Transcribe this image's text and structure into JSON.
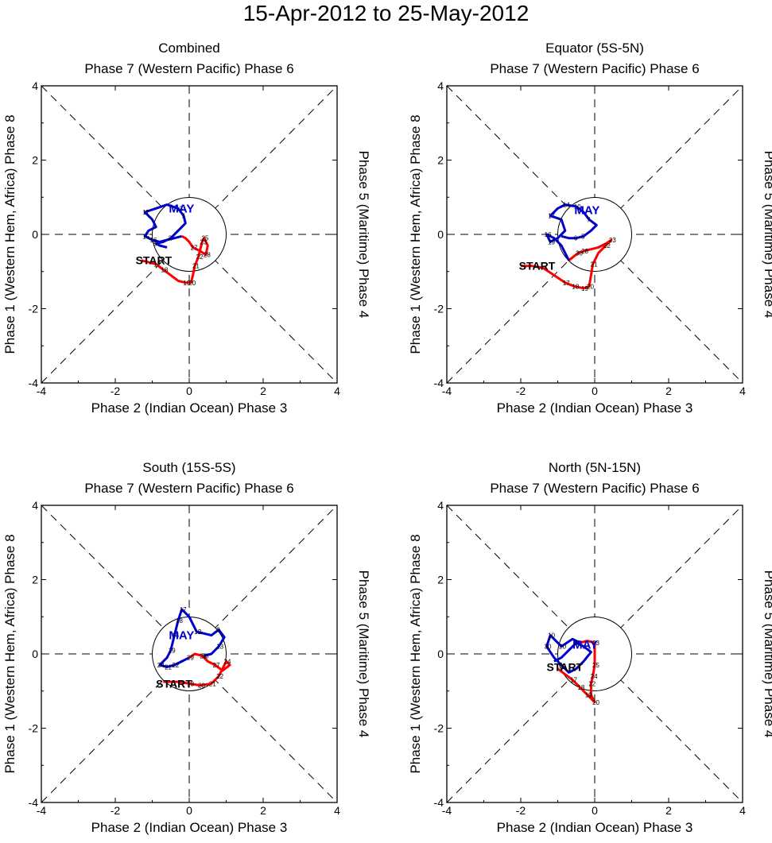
{
  "figure_title": "15-Apr-2012 to 25-May-2012",
  "colors": {
    "april": "#ff0000",
    "may": "#0000cc",
    "axes": "#000000"
  },
  "chart_data": [
    {
      "type": "line",
      "title": "Combined",
      "top_label": "Phase 7 (Western Pacific) Phase 6",
      "bottom_label": "Phase 2 (Indian Ocean) Phase 3",
      "left_label": "Phase 1 (Western Hem, Africa) Phase 8",
      "right_label": "Phase 5 (Maritime) Phase 4",
      "xlim": [
        -4,
        4
      ],
      "ylim": [
        -4,
        4
      ],
      "ticks": [
        -4,
        -2,
        0,
        2,
        4
      ],
      "start_label": "START",
      "month_label": "MAY",
      "series": [
        {
          "name": "April",
          "color": "#ff0000",
          "points": [
            [
              -1.3,
              -0.7
            ],
            [
              -1.1,
              -0.75
            ],
            [
              -0.9,
              -0.8
            ],
            [
              -0.7,
              -0.95
            ],
            [
              -0.5,
              -1.1
            ],
            [
              -0.3,
              -1.25
            ],
            [
              -0.1,
              -1.3
            ],
            [
              0.05,
              -1.3
            ],
            [
              0.1,
              -1.1
            ],
            [
              0.15,
              -0.85
            ],
            [
              0.25,
              -0.6
            ],
            [
              0.3,
              -0.4
            ],
            [
              0.35,
              -0.2
            ],
            [
              0.4,
              -0.1
            ],
            [
              0.5,
              -0.3
            ],
            [
              0.45,
              -0.55
            ],
            [
              0.3,
              -0.45
            ],
            [
              0.1,
              -0.35
            ],
            [
              0.0,
              -0.2
            ],
            [
              -0.1,
              -0.1
            ],
            [
              -0.2,
              -0.05
            ]
          ],
          "day_labels": [
            {
              "i": 2,
              "t": "17"
            },
            {
              "i": 3,
              "t": "18"
            },
            {
              "i": 6,
              "t": "19"
            },
            {
              "i": 7,
              "t": "20"
            },
            {
              "i": 9,
              "t": "21"
            },
            {
              "i": 10,
              "t": "22"
            },
            {
              "i": 12,
              "t": "23"
            },
            {
              "i": 13,
              "t": "25"
            },
            {
              "i": 15,
              "t": "28"
            },
            {
              "i": 17,
              "t": "27"
            }
          ]
        },
        {
          "name": "May",
          "color": "#0000cc",
          "points": [
            [
              -0.2,
              -0.05
            ],
            [
              -0.4,
              -0.1
            ],
            [
              -0.6,
              -0.15
            ],
            [
              -0.8,
              -0.2
            ],
            [
              -1.0,
              -0.15
            ],
            [
              -1.2,
              -0.05
            ],
            [
              -1.1,
              0.1
            ],
            [
              -0.9,
              0.2
            ],
            [
              -1.0,
              0.4
            ],
            [
              -1.2,
              0.6
            ],
            [
              -0.9,
              0.7
            ],
            [
              -0.6,
              0.8
            ],
            [
              -0.3,
              0.7
            ],
            [
              -0.15,
              0.5
            ],
            [
              -0.1,
              0.3
            ],
            [
              -0.3,
              0.1
            ],
            [
              -0.5,
              -0.1
            ],
            [
              -0.7,
              -0.2
            ],
            [
              -0.9,
              -0.25
            ],
            [
              -0.8,
              -0.3
            ],
            [
              -0.6,
              -0.35
            ]
          ],
          "day_labels": [
            {
              "i": 4,
              "t": "16"
            },
            {
              "i": 5,
              "t": "15"
            },
            {
              "i": 9,
              "t": "17"
            },
            {
              "i": 12,
              "t": "13"
            },
            {
              "i": 13,
              "t": "7"
            },
            {
              "i": 16,
              "t": "2"
            },
            {
              "i": 18,
              "t": "5"
            }
          ]
        }
      ],
      "start_xy": [
        -1.45,
        -0.7
      ],
      "month_xy": [
        -0.55,
        0.7
      ]
    },
    {
      "type": "line",
      "title": "Equator (5S-5N)",
      "top_label": "Phase 7 (Western Pacific) Phase 6",
      "bottom_label": "Phase 2 (Indian Ocean) Phase 3",
      "left_label": "Phase 1 (Western Hem, Africa) Phase 8",
      "right_label": "Phase 5 (Maritime) Phase 4",
      "xlim": [
        -4,
        4
      ],
      "ylim": [
        -4,
        4
      ],
      "ticks": [
        -4,
        -2,
        0,
        2,
        4
      ],
      "start_label": "START",
      "month_label": "MAY",
      "series": [
        {
          "name": "April",
          "color": "#ff0000",
          "points": [
            [
              -2.0,
              -0.85
            ],
            [
              -1.7,
              -0.85
            ],
            [
              -1.4,
              -0.9
            ],
            [
              -1.1,
              -1.1
            ],
            [
              -0.8,
              -1.3
            ],
            [
              -0.55,
              -1.4
            ],
            [
              -0.3,
              -1.45
            ],
            [
              -0.15,
              -1.4
            ],
            [
              -0.1,
              -1.1
            ],
            [
              -0.05,
              -0.8
            ],
            [
              0.1,
              -0.5
            ],
            [
              0.3,
              -0.3
            ],
            [
              0.45,
              -0.15
            ],
            [
              0.3,
              -0.25
            ],
            [
              0.1,
              -0.35
            ],
            [
              -0.1,
              -0.4
            ],
            [
              -0.3,
              -0.45
            ],
            [
              -0.45,
              -0.5
            ],
            [
              -0.7,
              -0.7
            ]
          ],
          "day_labels": [
            {
              "i": 4,
              "t": "17"
            },
            {
              "i": 5,
              "t": "18"
            },
            {
              "i": 6,
              "t": "19"
            },
            {
              "i": 7,
              "t": "20"
            },
            {
              "i": 9,
              "t": "21"
            },
            {
              "i": 11,
              "t": "22"
            },
            {
              "i": 12,
              "t": "23"
            },
            {
              "i": 16,
              "t": "28"
            },
            {
              "i": 17,
              "t": "30"
            }
          ]
        },
        {
          "name": "May",
          "color": "#0000cc",
          "points": [
            [
              -0.7,
              -0.7
            ],
            [
              -0.9,
              -0.3
            ],
            [
              -1.1,
              -0.1
            ],
            [
              -1.3,
              0.0
            ],
            [
              -1.2,
              -0.2
            ],
            [
              -1.0,
              -0.1
            ],
            [
              -0.8,
              0.1
            ],
            [
              -0.9,
              0.4
            ],
            [
              -1.2,
              0.5
            ],
            [
              -1.0,
              0.7
            ],
            [
              -0.8,
              0.8
            ],
            [
              -0.5,
              0.75
            ],
            [
              -0.3,
              0.6
            ],
            [
              -0.15,
              0.4
            ],
            [
              0.05,
              0.25
            ],
            [
              -0.1,
              0.1
            ],
            [
              -0.3,
              -0.05
            ],
            [
              -0.5,
              -0.1
            ],
            [
              -0.7,
              -0.1
            ],
            [
              -0.9,
              -0.05
            ]
          ],
          "day_labels": [
            {
              "i": 3,
              "t": "16"
            },
            {
              "i": 4,
              "t": "19"
            },
            {
              "i": 8,
              "t": "17"
            },
            {
              "i": 10,
              "t": "14"
            },
            {
              "i": 11,
              "t": "10"
            },
            {
              "i": 13,
              "t": "7"
            },
            {
              "i": 16,
              "t": "5"
            },
            {
              "i": 17,
              "t": "6"
            }
          ]
        }
      ],
      "start_xy": [
        -2.05,
        -0.85
      ],
      "month_xy": [
        -0.55,
        0.65
      ]
    },
    {
      "type": "line",
      "title": "South (15S-5S)",
      "top_label": "Phase 7 (Western Pacific) Phase 6",
      "bottom_label": "Phase 2 (Indian Ocean) Phase 3",
      "left_label": "Phase 1 (Western Hem, Africa) Phase 8",
      "right_label": "Phase 5 (Maritime) Phase 4",
      "xlim": [
        -4,
        4
      ],
      "ylim": [
        -4,
        4
      ],
      "ticks": [
        -4,
        -2,
        0,
        2,
        4
      ],
      "start_label": "START",
      "month_label": "MAY",
      "series": [
        {
          "name": "April",
          "color": "#ff0000",
          "points": [
            [
              -0.7,
              -0.75
            ],
            [
              -0.5,
              -0.75
            ],
            [
              -0.3,
              -0.75
            ],
            [
              0.0,
              -0.8
            ],
            [
              0.3,
              -0.85
            ],
            [
              0.6,
              -0.8
            ],
            [
              0.8,
              -0.6
            ],
            [
              0.9,
              -0.4
            ],
            [
              1.0,
              -0.2
            ],
            [
              1.1,
              -0.3
            ],
            [
              0.9,
              -0.45
            ],
            [
              0.7,
              -0.3
            ],
            [
              0.5,
              -0.2
            ],
            [
              0.35,
              -0.05
            ],
            [
              0.15,
              0.0
            ],
            [
              0.0,
              -0.1
            ]
          ],
          "day_labels": [
            {
              "i": 3,
              "t": "19"
            },
            {
              "i": 4,
              "t": "20"
            },
            {
              "i": 5,
              "t": "21"
            },
            {
              "i": 6,
              "t": "22"
            },
            {
              "i": 8,
              "t": "24"
            },
            {
              "i": 11,
              "t": "27"
            },
            {
              "i": 13,
              "t": "28"
            },
            {
              "i": 15,
              "t": "29"
            }
          ]
        },
        {
          "name": "May",
          "color": "#0000cc",
          "points": [
            [
              0.0,
              -0.1
            ],
            [
              -0.2,
              -0.2
            ],
            [
              -0.4,
              -0.3
            ],
            [
              -0.6,
              -0.35
            ],
            [
              -0.8,
              -0.3
            ],
            [
              -0.6,
              -0.1
            ],
            [
              -0.5,
              0.1
            ],
            [
              -0.4,
              0.5
            ],
            [
              -0.3,
              0.9
            ],
            [
              -0.2,
              1.2
            ],
            [
              0.0,
              1.0
            ],
            [
              0.2,
              0.6
            ],
            [
              0.4,
              0.55
            ],
            [
              0.6,
              0.5
            ],
            [
              0.8,
              0.65
            ],
            [
              0.95,
              0.45
            ],
            [
              0.8,
              0.2
            ],
            [
              0.6,
              0.0
            ],
            [
              0.4,
              -0.05
            ]
          ],
          "day_labels": [
            {
              "i": 2,
              "t": "22"
            },
            {
              "i": 3,
              "t": "21"
            },
            {
              "i": 4,
              "t": "24"
            },
            {
              "i": 6,
              "t": "19"
            },
            {
              "i": 7,
              "t": "14"
            },
            {
              "i": 8,
              "t": "18"
            },
            {
              "i": 9,
              "t": "17"
            },
            {
              "i": 11,
              "t": "12"
            },
            {
              "i": 14,
              "t": "9"
            },
            {
              "i": 16,
              "t": "13"
            },
            {
              "i": 18,
              "t": "30"
            }
          ]
        }
      ],
      "start_xy": [
        -0.9,
        -0.8
      ],
      "month_xy": [
        -0.55,
        0.5
      ]
    },
    {
      "type": "line",
      "title": "North (5N-15N)",
      "top_label": "Phase 7 (Western Pacific) Phase 6",
      "bottom_label": "Phase 2 (Indian Ocean) Phase 3",
      "left_label": "Phase 1 (Western Hem, Africa) Phase 8",
      "right_label": "Phase 5 (Maritime) Phase 4",
      "xlim": [
        -4,
        4
      ],
      "ylim": [
        -4,
        4
      ],
      "ticks": [
        -4,
        -2,
        0,
        2,
        4
      ],
      "start_label": "START",
      "month_label": "MAY",
      "series": [
        {
          "name": "April",
          "color": "#ff0000",
          "points": [
            [
              -1.0,
              -0.4
            ],
            [
              -0.8,
              -0.55
            ],
            [
              -0.6,
              -0.7
            ],
            [
              -0.4,
              -0.9
            ],
            [
              -0.2,
              -1.1
            ],
            [
              0.0,
              -1.3
            ],
            [
              -0.1,
              -1.1
            ],
            [
              -0.1,
              -0.8
            ],
            [
              -0.05,
              -0.6
            ],
            [
              0.0,
              -0.3
            ],
            [
              0.0,
              0.0
            ],
            [
              0.0,
              0.3
            ],
            [
              -0.2,
              0.35
            ],
            [
              -0.4,
              0.3
            ]
          ],
          "day_labels": [
            {
              "i": 2,
              "t": "17"
            },
            {
              "i": 3,
              "t": "18"
            },
            {
              "i": 4,
              "t": "19"
            },
            {
              "i": 5,
              "t": "20"
            },
            {
              "i": 7,
              "t": "22"
            },
            {
              "i": 8,
              "t": "24"
            },
            {
              "i": 9,
              "t": "25"
            },
            {
              "i": 11,
              "t": "23"
            }
          ]
        },
        {
          "name": "May",
          "color": "#0000cc",
          "points": [
            [
              -0.4,
              0.3
            ],
            [
              -0.6,
              0.4
            ],
            [
              -0.9,
              0.2
            ],
            [
              -1.2,
              0.5
            ],
            [
              -1.3,
              0.2
            ],
            [
              -1.1,
              -0.1
            ],
            [
              -0.9,
              -0.3
            ],
            [
              -0.7,
              -0.5
            ],
            [
              -0.5,
              -0.4
            ],
            [
              -0.3,
              -0.2
            ],
            [
              -0.1,
              0.05
            ],
            [
              -0.3,
              0.2
            ],
            [
              -0.5,
              0.3
            ],
            [
              -0.7,
              0.1
            ],
            [
              -0.9,
              -0.1
            ],
            [
              -1.1,
              -0.2
            ]
          ],
          "day_labels": [
            {
              "i": 2,
              "t": "20"
            },
            {
              "i": 3,
              "t": "10"
            },
            {
              "i": 4,
              "t": "30"
            },
            {
              "i": 6,
              "t": "9"
            },
            {
              "i": 12,
              "t": "28"
            }
          ]
        }
      ],
      "start_xy": [
        -1.3,
        -0.35
      ],
      "month_xy": [
        -0.6,
        0.25
      ]
    }
  ]
}
